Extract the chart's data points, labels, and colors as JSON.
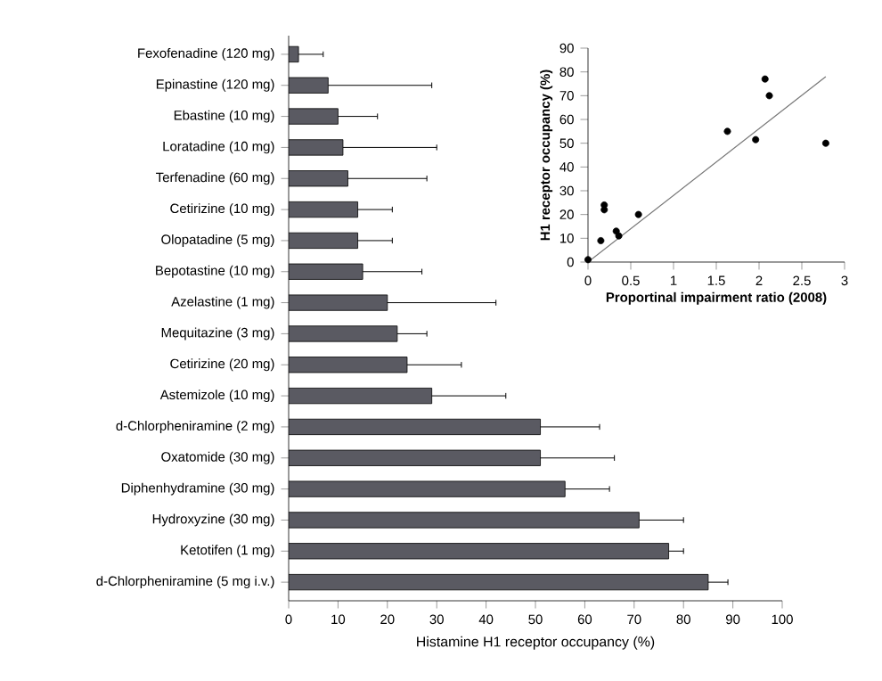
{
  "chart_data": [
    {
      "type": "bar",
      "orientation": "horizontal",
      "xlabel": "Histamine H1 receptor occupancy (%)",
      "categories": [
        "Fexofenadine (120 mg)",
        "Epinastine (120 mg)",
        "Ebastine (10 mg)",
        "Loratadine (10 mg)",
        "Terfenadine (60 mg)",
        "Cetirizine (10 mg)",
        "Olopatadine (5 mg)",
        "Bepotastine (10 mg)",
        "Azelastine (1 mg)",
        "Mequitazine (3 mg)",
        "Cetirizine (20 mg)",
        "Astemizole (10 mg)",
        "d-Chlorpheniramine (2 mg)",
        "Oxatomide (30 mg)",
        "Diphenhydramine (30 mg)",
        "Hydroxyzine (30 mg)",
        "Ketotifen (1 mg)",
        "d-Chlorpheniramine (5 mg i.v.)"
      ],
      "values": [
        2,
        8,
        10,
        11,
        12,
        14,
        14,
        15,
        20,
        22,
        24,
        29,
        51,
        51,
        56,
        71,
        77,
        85
      ],
      "errors": [
        [
          2,
          7
        ],
        [
          8,
          29
        ],
        [
          10,
          18
        ],
        [
          11,
          30
        ],
        [
          12,
          28
        ],
        [
          14,
          21
        ],
        [
          14,
          21
        ],
        [
          15,
          27
        ],
        [
          20,
          42
        ],
        [
          22,
          28
        ],
        [
          24,
          35
        ],
        [
          29,
          44
        ],
        [
          51,
          63
        ],
        [
          51,
          66
        ],
        [
          56,
          65
        ],
        [
          71,
          80
        ],
        [
          77,
          80
        ],
        [
          85,
          89
        ]
      ],
      "color": "#5a5a62",
      "xlim": [
        0,
        100
      ],
      "xticks": [
        0,
        10,
        20,
        30,
        40,
        50,
        60,
        70,
        80,
        90,
        100
      ]
    },
    {
      "type": "scatter",
      "xlabel": "Proportinal impairment ratio (2008)",
      "ylabel": "H1 receptor occupancy (%)",
      "series": [
        {
          "type": "scatter",
          "color": "#000000",
          "marker": "circle",
          "x": [
            0,
            0.15,
            0.19,
            0.19,
            0.33,
            0.36,
            0.59,
            1.63,
            1.96,
            2.07,
            2.12,
            2.78
          ],
          "values": [
            1,
            9,
            24,
            22,
            13,
            11,
            20,
            55,
            51.5,
            77,
            70,
            50
          ]
        },
        {
          "type": "line",
          "color": "#777777",
          "marker": "none",
          "x": [
            0,
            2.78
          ],
          "values": [
            0,
            78
          ]
        }
      ],
      "xlim": [
        0,
        3
      ],
      "ylim": [
        0,
        90
      ],
      "xticks": [
        0,
        0.5,
        1,
        1.5,
        2,
        2.5,
        3
      ],
      "yticks": [
        0,
        10,
        20,
        30,
        40,
        50,
        60,
        70,
        80,
        90
      ]
    }
  ]
}
